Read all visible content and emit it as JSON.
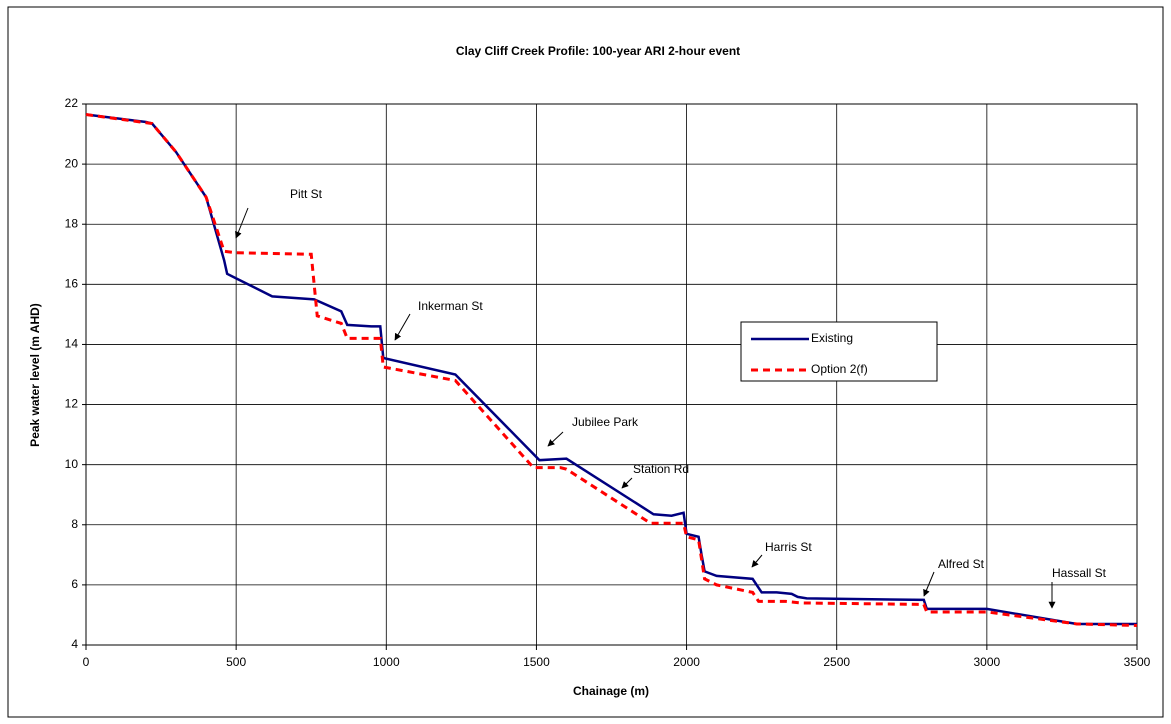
{
  "chart_data": {
    "type": "line",
    "title": "Clay Cliff Creek Profile: 100-year ARI 2-hour event",
    "xlabel": "Chainage (m)",
    "ylabel": "Peak water level (m AHD)",
    "xlim": [
      0,
      3500
    ],
    "xticks": [
      0,
      500,
      1000,
      1500,
      2000,
      2500,
      3000,
      3500
    ],
    "ylim": [
      4,
      22
    ],
    "yticks": [
      4,
      6,
      8,
      10,
      12,
      14,
      16,
      18,
      20,
      22
    ],
    "grid": true,
    "legend": "right",
    "series": [
      {
        "name": "Existing",
        "color": "#000080",
        "dash": false,
        "x": [
          0,
          200,
          220,
          300,
          400,
          440,
          460,
          470,
          500,
          620,
          760,
          850,
          870,
          950,
          980,
          990,
          1230,
          1510,
          1600,
          1890,
          1950,
          1990,
          2000,
          2040,
          2050,
          2060,
          2100,
          2220,
          2250,
          2300,
          2350,
          2370,
          2400,
          2790,
          2800,
          3000,
          3300,
          3500
        ],
        "values": [
          21.65,
          21.4,
          21.35,
          20.4,
          18.9,
          17.5,
          16.8,
          16.35,
          16.2,
          15.6,
          15.5,
          15.1,
          14.65,
          14.6,
          14.6,
          13.55,
          13.0,
          10.15,
          10.2,
          8.35,
          8.3,
          8.4,
          7.7,
          7.6,
          7.0,
          6.45,
          6.3,
          6.2,
          5.75,
          5.75,
          5.7,
          5.6,
          5.55,
          5.5,
          5.2,
          5.2,
          4.7,
          4.7
        ]
      },
      {
        "name": "Option 2(f)",
        "color": "#ff0000",
        "dash": true,
        "x": [
          0,
          220,
          300,
          400,
          460,
          500,
          750,
          770,
          850,
          870,
          980,
          990,
          1230,
          1490,
          1580,
          1600,
          1880,
          1990,
          2000,
          2040,
          2060,
          2100,
          2220,
          2240,
          2330,
          2380,
          2790,
          2800,
          3000,
          3300,
          3500
        ],
        "values": [
          21.65,
          21.35,
          20.4,
          18.9,
          17.1,
          17.05,
          17.0,
          14.95,
          14.7,
          14.2,
          14.2,
          13.25,
          12.8,
          9.9,
          9.9,
          9.85,
          8.05,
          8.05,
          7.6,
          7.5,
          6.2,
          6.0,
          5.75,
          5.45,
          5.45,
          5.4,
          5.35,
          5.1,
          5.1,
          4.7,
          4.65
        ]
      }
    ],
    "annotations": [
      "Pitt St",
      "Inkerman St",
      "Jubilee Park",
      "Station Rd",
      "Harris St",
      "Alfred St",
      "Hassall St"
    ]
  }
}
